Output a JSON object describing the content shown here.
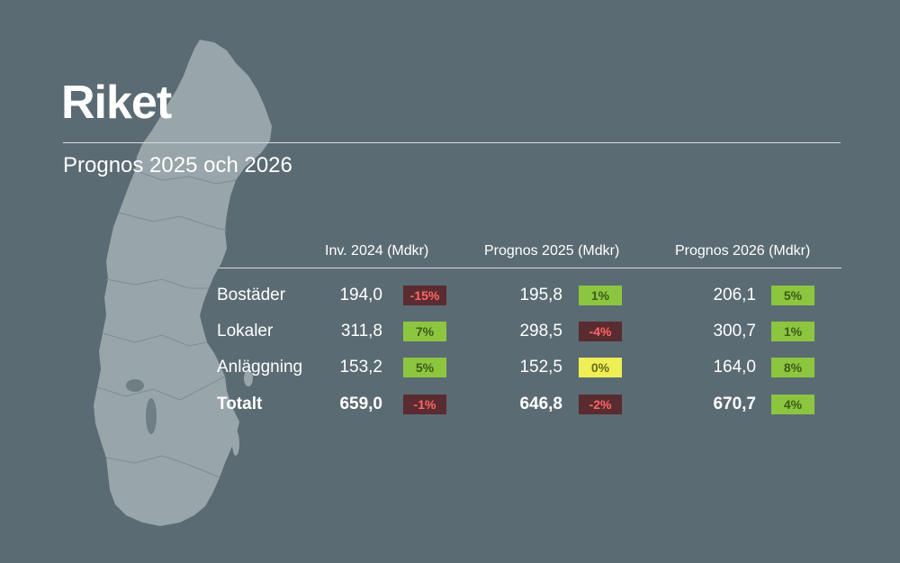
{
  "colors": {
    "background": "#5b6b73",
    "map_fill": "#98a5aa",
    "negative_bg": "#5a2b30",
    "negative_text": "#ff6666",
    "positive_bg": "#8cc63f",
    "positive_text": "#3d5a1a",
    "neutral_bg": "#eeee55",
    "neutral_text": "#6b6a1a"
  },
  "header": {
    "title": "Riket",
    "subtitle": "Prognos 2025 och 2026"
  },
  "table": {
    "columns": [
      "Inv. 2024 (Mdkr)",
      "Prognos 2025 (Mdkr)",
      "Prognos 2026 (Mdkr)"
    ],
    "rows": [
      {
        "label": "Bostäder",
        "cells": [
          {
            "value": "194,0",
            "change": "-15%",
            "status": "negative"
          },
          {
            "value": "195,8",
            "change": "1%",
            "status": "positive"
          },
          {
            "value": "206,1",
            "change": "5%",
            "status": "positive"
          }
        ]
      },
      {
        "label": "Lokaler",
        "cells": [
          {
            "value": "311,8",
            "change": "7%",
            "status": "positive"
          },
          {
            "value": "298,5",
            "change": "-4%",
            "status": "negative"
          },
          {
            "value": "300,7",
            "change": "1%",
            "status": "positive"
          }
        ]
      },
      {
        "label": "Anläggning",
        "cells": [
          {
            "value": "153,2",
            "change": "5%",
            "status": "positive"
          },
          {
            "value": "152,5",
            "change": "0%",
            "status": "neutral"
          },
          {
            "value": "164,0",
            "change": "8%",
            "status": "positive"
          }
        ]
      },
      {
        "label": "Totalt",
        "cells": [
          {
            "value": "659,0",
            "change": "-1%",
            "status": "negative"
          },
          {
            "value": "646,8",
            "change": "-2%",
            "status": "negative"
          },
          {
            "value": "670,7",
            "change": "4%",
            "status": "positive"
          }
        ]
      }
    ]
  }
}
